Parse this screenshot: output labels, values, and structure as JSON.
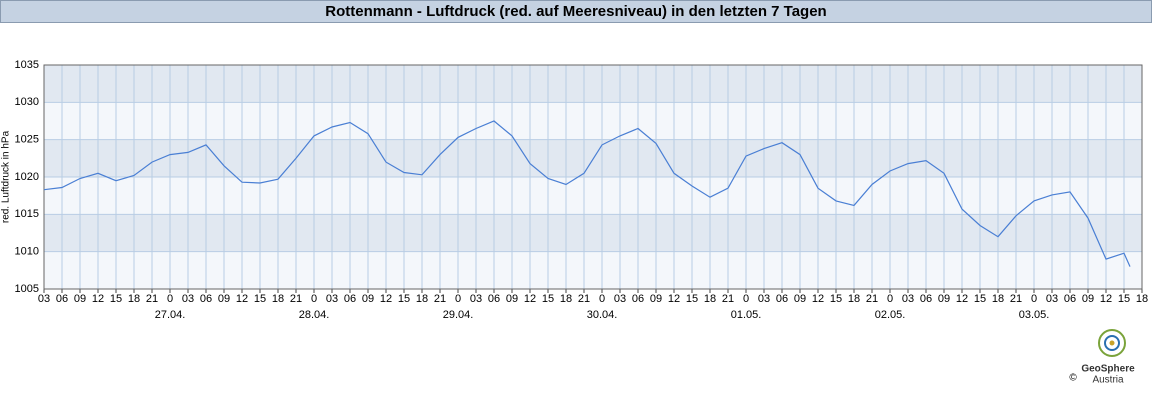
{
  "chart_data": {
    "type": "line",
    "title": "Rottenmann - Luftdruck (red. auf Meeresniveau) in den letzten 7 Tagen",
    "y_label": "red. Luftdruck in hPa",
    "x": [
      0,
      3,
      6,
      9,
      12,
      15,
      18,
      21,
      24,
      27,
      30,
      33,
      36,
      39,
      42,
      45,
      48,
      51,
      54,
      57,
      60,
      63,
      66,
      69,
      72,
      75,
      78,
      81,
      84,
      87,
      90,
      93,
      96,
      99,
      102,
      105,
      108,
      111,
      114,
      117,
      120,
      123,
      126,
      129,
      132,
      135,
      138,
      141,
      144,
      147,
      150,
      153,
      156,
      159,
      162,
      165,
      168,
      171,
      174,
      177,
      180,
      181
    ],
    "series": [
      {
        "color": "#4a7fd4",
        "values": [
          1018.3,
          1018.6,
          1019.8,
          1020.5,
          1019.5,
          1020.2,
          1022.0,
          1023.0,
          1023.3,
          1024.3,
          1021.5,
          1019.3,
          1019.2,
          1019.7,
          1022.5,
          1025.5,
          1026.7,
          1027.3,
          1025.8,
          1022.0,
          1020.6,
          1020.3,
          1023.0,
          1025.3,
          1026.5,
          1027.5,
          1025.5,
          1021.8,
          1019.8,
          1019.0,
          1020.5,
          1024.3,
          1025.5,
          1026.5,
          1024.5,
          1020.5,
          1018.8,
          1017.3,
          1018.5,
          1022.8,
          1023.8,
          1024.6,
          1023.0,
          1018.5,
          1016.8,
          1016.2,
          1019.0,
          1020.8,
          1021.8,
          1022.2,
          1020.5,
          1015.7,
          1013.5,
          1012.0,
          1014.8,
          1016.8,
          1017.6,
          1018.0,
          1014.5,
          1009.0,
          1009.8,
          1008.0
        ]
      }
    ],
    "xlim": [
      0,
      183
    ],
    "ylim": [
      1005,
      1035
    ],
    "yticks": [
      1005,
      1010,
      1015,
      1020,
      1025,
      1030,
      1035
    ],
    "xticks": [
      {
        "value": 0,
        "label": "03"
      },
      {
        "value": 3,
        "label": "06"
      },
      {
        "value": 6,
        "label": "09"
      },
      {
        "value": 9,
        "label": "12"
      },
      {
        "value": 12,
        "label": "15"
      },
      {
        "value": 15,
        "label": "18"
      },
      {
        "value": 18,
        "label": "21"
      },
      {
        "value": 21,
        "label": "0"
      },
      {
        "value": 24,
        "label": "03"
      },
      {
        "value": 27,
        "label": "06"
      },
      {
        "value": 30,
        "label": "09"
      },
      {
        "value": 33,
        "label": "12"
      },
      {
        "value": 36,
        "label": "15"
      },
      {
        "value": 39,
        "label": "18"
      },
      {
        "value": 42,
        "label": "21"
      },
      {
        "value": 45,
        "label": "0"
      },
      {
        "value": 48,
        "label": "03"
      },
      {
        "value": 51,
        "label": "06"
      },
      {
        "value": 54,
        "label": "09"
      },
      {
        "value": 57,
        "label": "12"
      },
      {
        "value": 60,
        "label": "15"
      },
      {
        "value": 63,
        "label": "18"
      },
      {
        "value": 66,
        "label": "21"
      },
      {
        "value": 69,
        "label": "0"
      },
      {
        "value": 72,
        "label": "03"
      },
      {
        "value": 75,
        "label": "06"
      },
      {
        "value": 78,
        "label": "09"
      },
      {
        "value": 81,
        "label": "12"
      },
      {
        "value": 84,
        "label": "15"
      },
      {
        "value": 87,
        "label": "18"
      },
      {
        "value": 90,
        "label": "21"
      },
      {
        "value": 93,
        "label": "0"
      },
      {
        "value": 96,
        "label": "03"
      },
      {
        "value": 99,
        "label": "06"
      },
      {
        "value": 102,
        "label": "09"
      },
      {
        "value": 105,
        "label": "12"
      },
      {
        "value": 108,
        "label": "15"
      },
      {
        "value": 111,
        "label": "18"
      },
      {
        "value": 114,
        "label": "21"
      },
      {
        "value": 117,
        "label": "0"
      },
      {
        "value": 120,
        "label": "03"
      },
      {
        "value": 123,
        "label": "06"
      },
      {
        "value": 126,
        "label": "09"
      },
      {
        "value": 129,
        "label": "12"
      },
      {
        "value": 132,
        "label": "15"
      },
      {
        "value": 135,
        "label": "18"
      },
      {
        "value": 138,
        "label": "21"
      },
      {
        "value": 141,
        "label": "0"
      },
      {
        "value": 144,
        "label": "03"
      },
      {
        "value": 147,
        "label": "06"
      },
      {
        "value": 150,
        "label": "09"
      },
      {
        "value": 153,
        "label": "12"
      },
      {
        "value": 156,
        "label": "15"
      },
      {
        "value": 159,
        "label": "18"
      },
      {
        "value": 162,
        "label": "21"
      },
      {
        "value": 165,
        "label": "0"
      },
      {
        "value": 168,
        "label": "03"
      },
      {
        "value": 171,
        "label": "06"
      },
      {
        "value": 174,
        "label": "09"
      },
      {
        "value": 177,
        "label": "12"
      },
      {
        "value": 180,
        "label": "15"
      },
      {
        "value": 183,
        "label": "18"
      }
    ],
    "date_labels": [
      {
        "value": 21,
        "label": "27.04."
      },
      {
        "value": 45,
        "label": "28.04."
      },
      {
        "value": 69,
        "label": "29.04."
      },
      {
        "value": 93,
        "label": "30.04."
      },
      {
        "value": 117,
        "label": "01.05."
      },
      {
        "value": 141,
        "label": "02.05."
      },
      {
        "value": 165,
        "label": "03.05."
      }
    ],
    "grid": true,
    "logo": {
      "name": "GeoSphere",
      "sub": "Austria",
      "copyright": "©"
    }
  }
}
